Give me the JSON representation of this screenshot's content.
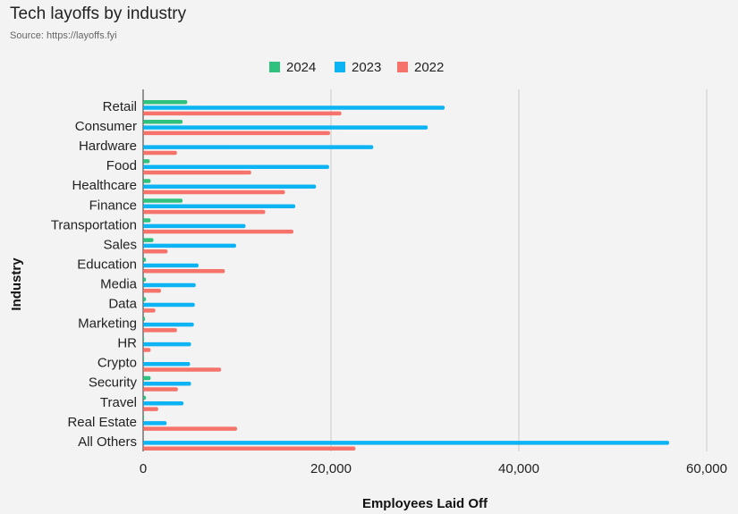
{
  "chart_data": {
    "type": "bar",
    "orientation": "horizontal",
    "title": "Tech layoffs by industry",
    "subtitle": "Source: https://layoffs.fyi",
    "xlabel": "Employees Laid Off",
    "ylabel": "Industry",
    "xlim": [
      0,
      60000
    ],
    "xticks": [
      0,
      20000,
      40000,
      60000
    ],
    "xtick_labels": [
      "0",
      "20,000",
      "40,000",
      "60,000"
    ],
    "grid": true,
    "legend_position": "top",
    "categories": [
      "Retail",
      "Consumer",
      "Hardware",
      "Food",
      "Healthcare",
      "Finance",
      "Transportation",
      "Sales",
      "Education",
      "Media",
      "Data",
      "Marketing",
      "HR",
      "Crypto",
      "Security",
      "Travel",
      "Real Estate",
      "All Others"
    ],
    "series": [
      {
        "name": "2024",
        "color": "#2ec27e",
        "values": [
          4700,
          4200,
          0,
          700,
          800,
          4200,
          800,
          1100,
          300,
          300,
          300,
          200,
          100,
          100,
          800,
          300,
          100,
          0
        ]
      },
      {
        "name": "2023",
        "color": "#0db4f4",
        "values": [
          32100,
          30300,
          24500,
          19800,
          18400,
          16200,
          10900,
          9900,
          5900,
          5600,
          5500,
          5400,
          5100,
          5000,
          5100,
          4300,
          2500,
          56000
        ]
      },
      {
        "name": "2022",
        "color": "#f5736a",
        "values": [
          21100,
          19900,
          3600,
          11500,
          15100,
          13000,
          16000,
          2600,
          8700,
          1900,
          1300,
          3600,
          800,
          8300,
          3700,
          1600,
          10000,
          22600
        ]
      }
    ]
  }
}
